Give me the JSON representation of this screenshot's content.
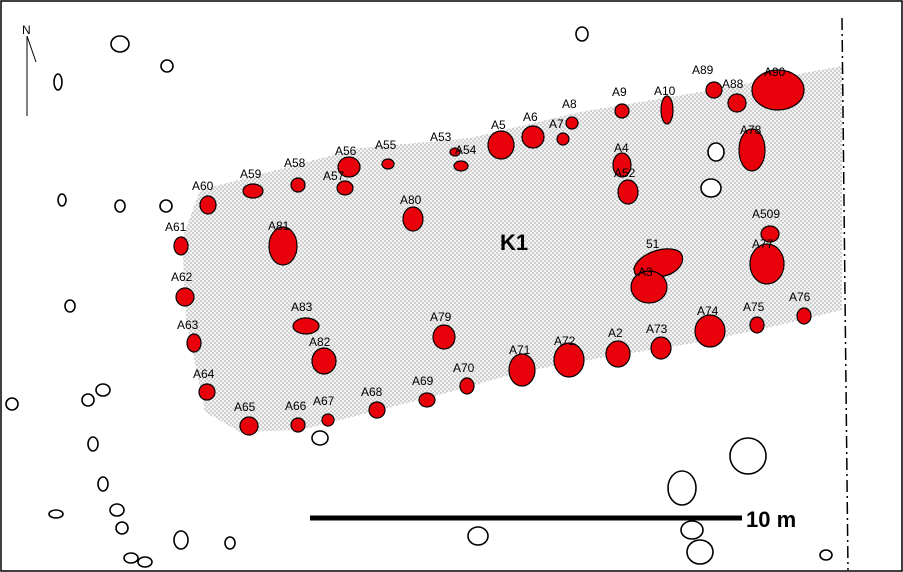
{
  "map": {
    "north_label": "N",
    "area_label": "K1",
    "scale_label": "10 m",
    "colors": {
      "feature_fill": "#e8000b",
      "feature_stroke": "#000000",
      "area_fill": "#d9d9d9",
      "background": "#ffffff"
    },
    "features": [
      "A2",
      "A3",
      "A4",
      "A5",
      "A6",
      "A7",
      "A8",
      "A9",
      "A10",
      "A52",
      "51",
      "A53",
      "A54",
      "A55",
      "A56",
      "A57",
      "A58",
      "A59",
      "A60",
      "A61",
      "A62",
      "A63",
      "A64",
      "A65",
      "A66",
      "A67",
      "A68",
      "A69",
      "A70",
      "A71",
      "A72",
      "A73",
      "A74",
      "A75",
      "A76",
      "A77",
      "A78",
      "A79",
      "A80",
      "A81",
      "A82",
      "A83",
      "A88",
      "A89",
      "A90",
      "A509"
    ]
  }
}
